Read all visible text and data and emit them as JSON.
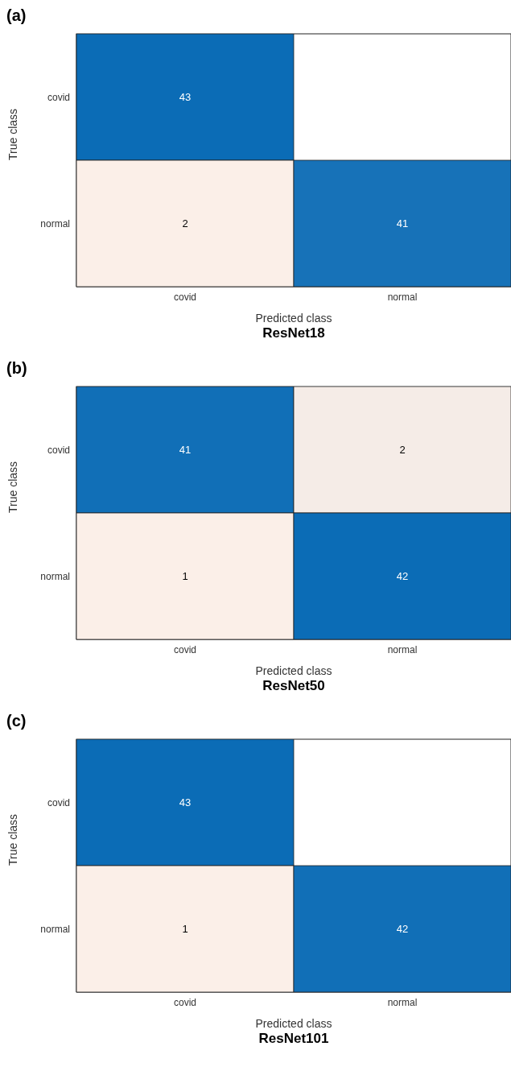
{
  "chart_data": [
    {
      "type": "heatmap",
      "title": "(a)",
      "subtitle": "ResNet18",
      "xlabel": "Predicted class",
      "ylabel": "True class",
      "categories": [
        "covid",
        "normal"
      ],
      "y_categories": [
        "covid",
        "normal"
      ],
      "cells": [
        [
          43,
          null
        ],
        [
          2,
          41
        ]
      ],
      "data_labels": true,
      "colors": [
        "#fbefe8",
        "#0b6cb6"
      ]
    },
    {
      "type": "heatmap",
      "title": "(b)",
      "subtitle": "ResNet50",
      "xlabel": "Predicted class",
      "ylabel": "True class",
      "categories": [
        "covid",
        "normal"
      ],
      "y_categories": [
        "covid",
        "normal"
      ],
      "cells": [
        [
          41,
          2
        ],
        [
          1,
          42
        ]
      ],
      "data_labels": true,
      "colors": [
        "#fbefe8",
        "#0b6cb6"
      ]
    },
    {
      "type": "heatmap",
      "title": "(c)",
      "subtitle": "ResNet101",
      "xlabel": "Predicted class",
      "ylabel": "True class",
      "categories": [
        "covid",
        "normal"
      ],
      "y_categories": [
        "covid",
        "normal"
      ],
      "cells": [
        [
          43,
          null
        ],
        [
          1,
          42
        ]
      ],
      "data_labels": true,
      "colors": [
        "#fbefe8",
        "#0b6cb6"
      ]
    }
  ]
}
